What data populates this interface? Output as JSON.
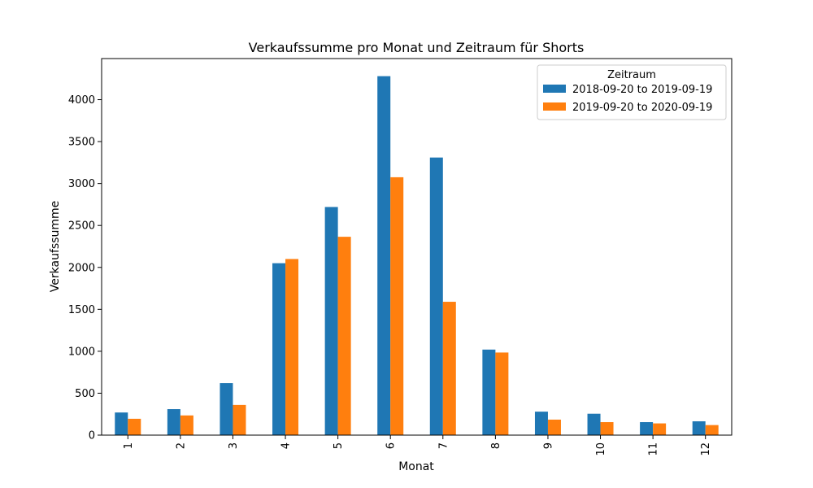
{
  "chart_data": {
    "type": "bar",
    "title": "Verkaufssumme pro Monat und Zeitraum für Shorts",
    "xlabel": "Monat",
    "ylabel": "Verkaufssumme",
    "categories": [
      "1",
      "2",
      "3",
      "4",
      "5",
      "6",
      "7",
      "8",
      "9",
      "10",
      "11",
      "12"
    ],
    "series": [
      {
        "name": "2018-09-20 to 2019-09-19",
        "color": "#1f77b4",
        "values": [
          270,
          310,
          620,
          2050,
          2720,
          4280,
          3310,
          1020,
          280,
          255,
          155,
          165
        ]
      },
      {
        "name": "2019-09-20 to 2020-09-19",
        "color": "#ff7f0e",
        "values": [
          195,
          235,
          360,
          2100,
          2365,
          3075,
          1590,
          985,
          185,
          155,
          140,
          120
        ]
      }
    ],
    "ylim": [
      0,
      4490
    ],
    "yticks": [
      0,
      500,
      1000,
      1500,
      2000,
      2500,
      3000,
      3500,
      4000
    ],
    "grid": false,
    "legend": {
      "title": "Zeitraum",
      "placement": "top-right"
    }
  }
}
